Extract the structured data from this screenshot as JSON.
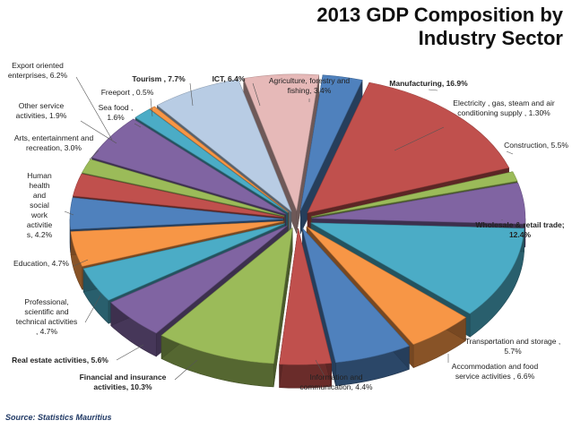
{
  "chart_data": {
    "type": "pie",
    "title": "2013 GDP Composition by Industry Sector",
    "source": "Source: Statistics Mauritius",
    "slices": [
      {
        "name": "Agriculture, forestry and fishing",
        "label": "Agriculture, forestry and fishing, 3.4%",
        "value": 3.4,
        "color": "#4f81bd",
        "bold": false
      },
      {
        "name": "Manufacturing",
        "label": "Manufacturing, 16.9%",
        "value": 16.9,
        "color": "#c0504d",
        "bold": true
      },
      {
        "name": "Electricity , gas, steam and air conditioning supply",
        "label": "Electricity , gas, steam and air conditioning supply , 1.30%",
        "value": 1.3,
        "color": "#9bbb59",
        "bold": false
      },
      {
        "name": "Construction",
        "label": "Construction, 5.5%",
        "value": 5.5,
        "color": "#8064a2",
        "bold": false
      },
      {
        "name": "Wholesale & retail trade",
        "label": "Wholesale & retail trade; 12.4%",
        "value": 12.4,
        "color": "#4bacc6",
        "bold": true
      },
      {
        "name": "Transportation and storage",
        "label": "Transportation and storage , 5.7%",
        "value": 5.7,
        "color": "#f79646",
        "bold": false
      },
      {
        "name": "Accommodation and food service activities",
        "label": "Accommodation and food service activities , 6.6%",
        "value": 6.6,
        "color": "#4f81bd",
        "bold": false
      },
      {
        "name": "Information and communication",
        "label": "Information and communication, 4.4%",
        "value": 4.4,
        "color": "#c0504d",
        "bold": false
      },
      {
        "name": "Financial and insurance activities",
        "label": "Financial and insurance activities, 10.3%",
        "value": 10.3,
        "color": "#9bbb59",
        "bold": true
      },
      {
        "name": "Real estate activities",
        "label": "Real estate activities, 5.6%",
        "value": 5.6,
        "color": "#8064a2",
        "bold": true
      },
      {
        "name": "Professional, scientific and technical activities",
        "label": "Professional, scientific and technical activities , 4.7%",
        "value": 4.7,
        "color": "#4bacc6",
        "bold": false
      },
      {
        "name": "Education",
        "label": "Education, 4.7%",
        "value": 4.7,
        "color": "#f79646",
        "bold": false
      },
      {
        "name": "Human health and social work activities",
        "label": "Human health and social work activities, 4.2%",
        "value": 4.2,
        "color": "#4f81bd",
        "bold": false
      },
      {
        "name": "Arts, entertainment and recreation",
        "label": "Arts, entertainment and recreation, 3.0%",
        "value": 3.0,
        "color": "#c0504d",
        "bold": false
      },
      {
        "name": "Other service activities",
        "label": "Other service activities, 1.9%",
        "value": 1.9,
        "color": "#9bbb59",
        "bold": false
      },
      {
        "name": "Export oriented enterprises",
        "label": "Export oriented enterprises, 6.2%",
        "value": 6.2,
        "color": "#8064a2",
        "bold": false
      },
      {
        "name": "Sea food",
        "label": "Sea food , 1.6%",
        "value": 1.6,
        "color": "#4bacc6",
        "bold": false
      },
      {
        "name": "Freeport",
        "label": "Freeport , 0.5%",
        "value": 0.5,
        "color": "#f79646",
        "bold": false
      },
      {
        "name": "Tourism",
        "label": "Tourism , 7.7%",
        "value": 7.7,
        "color": "#b8cce4",
        "bold": true
      },
      {
        "name": "ICT",
        "label": "ICT, 6.4%",
        "value": 6.4,
        "color": "#e6b9b8",
        "bold": true
      }
    ]
  }
}
